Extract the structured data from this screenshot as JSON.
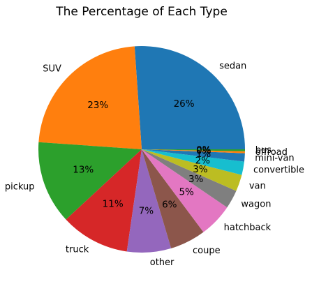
{
  "chart_data": {
    "type": "pie",
    "title": "The Percentage of Each Type",
    "start_angle_deg": 0,
    "direction": "counterclockwise",
    "slices": [
      {
        "label": "sedan",
        "value": 26.1,
        "display": "26%",
        "color": "#1f77b4"
      },
      {
        "label": "SUV",
        "value": 22.8,
        "display": "23%",
        "color": "#ff7f0e"
      },
      {
        "label": "pickup",
        "value": 13.0,
        "display": "13%",
        "color": "#2ca02c"
      },
      {
        "label": "truck",
        "value": 10.8,
        "display": "11%",
        "color": "#d62728"
      },
      {
        "label": "other",
        "value": 6.9,
        "display": "7%",
        "color": "#9467bd"
      },
      {
        "label": "coupe",
        "value": 5.6,
        "display": "6%",
        "color": "#8c564b"
      },
      {
        "label": "hatchback",
        "value": 5.3,
        "display": "5%",
        "color": "#e377c2"
      },
      {
        "label": "wagon",
        "value": 2.9,
        "display": "3%",
        "color": "#7f7f7f"
      },
      {
        "label": "van",
        "value": 2.6,
        "display": "3%",
        "color": "#bcbd22"
      },
      {
        "label": "convertible",
        "value": 2.1,
        "display": "2%",
        "color": "#17becf"
      },
      {
        "label": "mini-van",
        "value": 1.3,
        "display": "1%",
        "color": "#1f77b4"
      },
      {
        "label": "offroad",
        "value": 0.3,
        "display": "0%",
        "color": "#ff7f0e"
      },
      {
        "label": "bus",
        "value": 0.3,
        "display": "0%",
        "color": "#2ca02c"
      }
    ]
  }
}
